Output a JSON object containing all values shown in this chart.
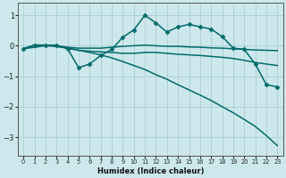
{
  "xlabel": "Humidex (Indice chaleur)",
  "background_color": "#cde8ec",
  "grid_color": "#aacdd4",
  "line_color": "#006b6b",
  "xlim": [
    -0.5,
    23.5
  ],
  "ylim": [
    -3.6,
    1.4
  ],
  "yticks": [
    -3,
    -2,
    -1,
    0,
    1
  ],
  "xticks": [
    0,
    1,
    2,
    3,
    4,
    5,
    6,
    7,
    8,
    9,
    10,
    11,
    12,
    13,
    14,
    15,
    16,
    17,
    18,
    19,
    20,
    21,
    22,
    23
  ],
  "series": [
    {
      "x": [
        0,
        1,
        2,
        3,
        4,
        5,
        6,
        7,
        8,
        9,
        10,
        11,
        12,
        13,
        14,
        15,
        16,
        17,
        18,
        19,
        20,
        21,
        22,
        23
      ],
      "y": [
        -0.1,
        0.02,
        0.02,
        0.02,
        -0.1,
        -0.72,
        -0.6,
        -0.32,
        -0.12,
        0.28,
        0.52,
        1.0,
        0.75,
        0.45,
        0.62,
        0.7,
        0.62,
        0.55,
        0.3,
        -0.08,
        -0.12,
        -0.6,
        -1.28,
        -1.35
      ],
      "marker": "D",
      "markersize": 2.5,
      "linewidth": 1.1
    },
    {
      "x": [
        0,
        1,
        2,
        3,
        4,
        5,
        6,
        7,
        8,
        9,
        10,
        11,
        12,
        13,
        14,
        15,
        16,
        17,
        18,
        19,
        20,
        21,
        22,
        23
      ],
      "y": [
        -0.1,
        0.02,
        0.02,
        0.0,
        -0.05,
        -0.08,
        -0.08,
        -0.08,
        -0.05,
        -0.02,
        0.0,
        0.02,
        0.0,
        -0.02,
        -0.02,
        -0.04,
        -0.05,
        -0.07,
        -0.08,
        -0.1,
        -0.12,
        -0.14,
        -0.15,
        -0.16
      ],
      "marker": null,
      "markersize": 0,
      "linewidth": 1.1
    },
    {
      "x": [
        0,
        1,
        2,
        3,
        4,
        5,
        6,
        7,
        8,
        9,
        10,
        11,
        12,
        13,
        14,
        15,
        16,
        17,
        18,
        19,
        20,
        21,
        22,
        23
      ],
      "y": [
        -0.1,
        0.02,
        0.02,
        -0.02,
        -0.08,
        -0.15,
        -0.18,
        -0.2,
        -0.22,
        -0.25,
        -0.25,
        -0.22,
        -0.22,
        -0.25,
        -0.28,
        -0.3,
        -0.32,
        -0.35,
        -0.38,
        -0.42,
        -0.48,
        -0.55,
        -0.6,
        -0.65
      ],
      "marker": null,
      "markersize": 0,
      "linewidth": 1.1
    },
    {
      "x": [
        0,
        1,
        2,
        3,
        4,
        5,
        6,
        7,
        8,
        9,
        10,
        11,
        12,
        13,
        14,
        15,
        16,
        17,
        18,
        19,
        20,
        21,
        22,
        23
      ],
      "y": [
        -0.1,
        -0.05,
        0.0,
        -0.02,
        -0.08,
        -0.15,
        -0.22,
        -0.3,
        -0.4,
        -0.52,
        -0.65,
        -0.78,
        -0.95,
        -1.1,
        -1.28,
        -1.45,
        -1.62,
        -1.8,
        -2.0,
        -2.2,
        -2.42,
        -2.65,
        -2.95,
        -3.28
      ],
      "marker": null,
      "markersize": 0,
      "linewidth": 1.1
    }
  ]
}
